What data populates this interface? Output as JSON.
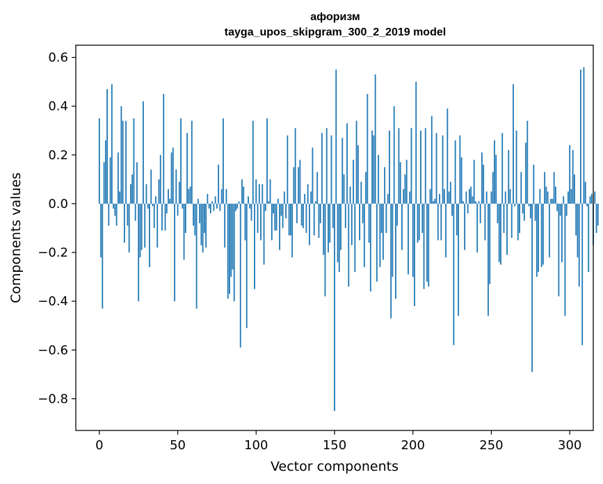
{
  "chart_data": {
    "type": "bar",
    "title": "афоризм",
    "subtitle": "tayga_upos_skipgram_300_2_2019 model",
    "xlabel": "Vector components",
    "ylabel": "Components values",
    "xlim": [
      -15,
      315
    ],
    "ylim": [
      -0.93,
      0.65
    ],
    "xticks": [
      0,
      50,
      100,
      150,
      200,
      250,
      300
    ],
    "yticks": [
      -0.8,
      -0.6,
      -0.4,
      -0.2,
      0.0,
      0.2,
      0.4,
      0.6
    ],
    "ytick_labels": [
      "−0.8",
      "−0.6",
      "−0.4",
      "−0.2",
      "0.0",
      "0.2",
      "0.4",
      "0.6"
    ],
    "bar_color": "#1f77b4",
    "values": [
      0.35,
      -0.22,
      -0.43,
      0.17,
      0.26,
      0.47,
      -0.09,
      0.19,
      0.49,
      -0.02,
      -0.05,
      -0.09,
      0.21,
      0.05,
      0.4,
      0.34,
      -0.16,
      0.34,
      -0.09,
      -0.2,
      0.08,
      0.12,
      0.35,
      -0.07,
      0.17,
      -0.4,
      -0.22,
      -0.19,
      0.42,
      -0.18,
      0.08,
      -0.02,
      -0.26,
      0.14,
      -0.01,
      -0.1,
      0.03,
      -0.18,
      0.1,
      0.2,
      -0.11,
      0.45,
      -0.11,
      -0.04,
      0.06,
      0.02,
      0.21,
      0.23,
      -0.4,
      0.14,
      -0.05,
      0.09,
      0.35,
      -0.02,
      -0.23,
      -0.12,
      0.29,
      0.06,
      0.07,
      0.34,
      -0.09,
      -0.13,
      -0.43,
      0.02,
      -0.08,
      -0.17,
      -0.2,
      -0.12,
      -0.18,
      0.04,
      -0.02,
      -0.04,
      0.01,
      -0.03,
      0.03,
      -0.02,
      0.16,
      -0.03,
      0.06,
      0.35,
      -0.18,
      0.06,
      -0.39,
      -0.37,
      -0.3,
      -0.27,
      -0.4,
      -0.03,
      -0.02,
      0.01,
      -0.59,
      0.1,
      0.07,
      -0.15,
      -0.51,
      0.03,
      -0.02,
      -0.07,
      0.34,
      -0.35,
      0.1,
      -0.12,
      0.08,
      -0.15,
      0.08,
      -0.25,
      -0.03,
      0.35,
      0.01,
      0.1,
      -0.15,
      -0.04,
      -0.11,
      -0.11,
      0.02,
      -0.19,
      -0.05,
      -0.1,
      0.05,
      -0.06,
      0.28,
      -0.13,
      -0.13,
      -0.22,
      0.15,
      0.31,
      -0.08,
      0.15,
      0.18,
      -0.09,
      -0.1,
      0.04,
      -0.12,
      0.08,
      -0.17,
      0.05,
      0.23,
      -0.13,
      0.01,
      0.13,
      -0.14,
      -0.08,
      0.29,
      -0.21,
      -0.38,
      0.31,
      -0.2,
      -0.16,
      0.28,
      -0.1,
      -0.85,
      0.55,
      -0.24,
      -0.28,
      -0.19,
      0.27,
      0.12,
      -0.1,
      0.33,
      -0.34,
      0.07,
      -0.17,
      0.18,
      -0.28,
      0.34,
      0.24,
      -0.15,
      0.09,
      -0.08,
      -0.26,
      0.13,
      0.45,
      -0.16,
      -0.36,
      0.3,
      0.28,
      0.53,
      -0.32,
      0.2,
      -0.26,
      -0.12,
      -0.23,
      0.15,
      -0.12,
      0.04,
      0.3,
      -0.47,
      -0.3,
      0.4,
      -0.39,
      -0.09,
      0.31,
      0.17,
      -0.19,
      0.06,
      0.12,
      0.18,
      -0.29,
      0.05,
      0.31,
      -0.3,
      -0.42,
      0.5,
      -0.16,
      -0.15,
      0.3,
      -0.12,
      -0.35,
      0.31,
      -0.32,
      -0.34,
      0.06,
      0.36,
      0.01,
      0.02,
      0.29,
      -0.15,
      0.04,
      -0.15,
      0.28,
      0.06,
      -0.22,
      0.39,
      0.05,
      0.09,
      -0.05,
      -0.58,
      0.26,
      -0.13,
      -0.46,
      0.28,
      0.19,
      0.01,
      -0.19,
      0.05,
      -0.04,
      0.06,
      0.07,
      0.03,
      0.18,
      0.01,
      -0.2,
      0.01,
      -0.08,
      0.21,
      0.16,
      -0.15,
      0.05,
      -0.46,
      -0.33,
      0.05,
      0.13,
      0.26,
      0.2,
      -0.08,
      -0.24,
      -0.25,
      0.29,
      -0.12,
      0.05,
      -0.21,
      0.22,
      0.06,
      -0.14,
      0.49,
      -0.01,
      0.3,
      -0.15,
      -0.12,
      0.13,
      -0.04,
      -0.07,
      0.25,
      0.34,
      -0.01,
      -0.06,
      -0.69,
      0.16,
      -0.07,
      -0.3,
      -0.28,
      0.06,
      -0.26,
      -0.25,
      0.13,
      0.07,
      0.05,
      -0.22,
      0.02,
      0.02,
      0.13,
      0.07,
      -0.03,
      -0.38,
      -0.05,
      -0.24,
      0.03,
      -0.46,
      -0.05,
      0.05,
      0.24,
      0.06,
      0.22,
      0.12,
      -0.13,
      -0.22,
      -0.34,
      0.55,
      -0.58,
      0.56,
      0.09,
      -0.01,
      -0.28,
      0.03,
      0.04,
      -0.17,
      0.05,
      -0.12,
      -0.09
    ]
  }
}
